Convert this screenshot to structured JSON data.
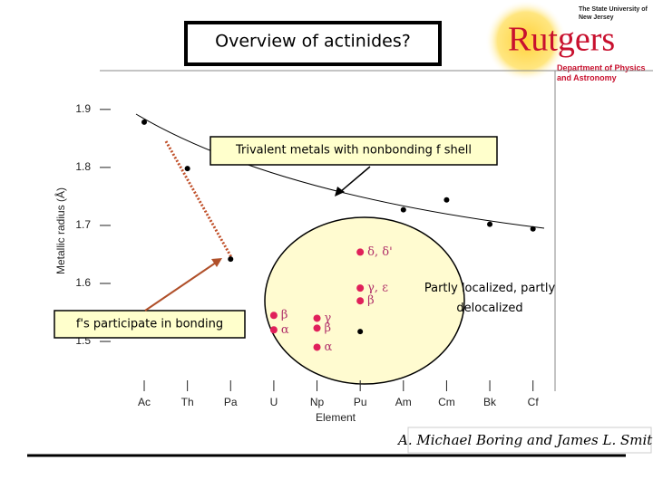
{
  "slide": {
    "title": "Overview of actinides?",
    "logo": {
      "name": "Rutgers",
      "university": "The State University of New Jersey",
      "department": "Department of Physics and Astronomy"
    },
    "citation": "A. Michael Boring and James L. Smith"
  },
  "chart_data": {
    "type": "scatter",
    "ylabel": "Metallic radius (Å)",
    "xlabel": "Element",
    "categories": [
      "Ac",
      "Th",
      "Pa",
      "U",
      "Np",
      "Pu",
      "Am",
      "Cm",
      "Bk",
      "Cf"
    ],
    "series": [
      {
        "name": "Trivalent",
        "color": "#000000",
        "values": [
          1.878,
          1.798,
          1.642,
          null,
          null,
          1.517,
          1.727,
          1.744,
          1.702,
          1.694
        ]
      }
    ],
    "phases": [
      {
        "element": "U",
        "label": "β",
        "value": 1.545,
        "color": "#e0205a"
      },
      {
        "element": "U",
        "label": "α",
        "value": 1.52,
        "color": "#e0205a"
      },
      {
        "element": "Np",
        "label": "γ",
        "value": 1.54,
        "color": "#e0205a"
      },
      {
        "element": "Np",
        "label": "β",
        "value": 1.523,
        "color": "#e0205a"
      },
      {
        "element": "Np",
        "label": "α",
        "value": 1.49,
        "color": "#e0205a"
      },
      {
        "element": "Pu",
        "label": "δ, δ'",
        "value": 1.654,
        "color": "#e0205a"
      },
      {
        "element": "Pu",
        "label": "γ, ε",
        "value": 1.592,
        "color": "#e0205a"
      },
      {
        "element": "Pu",
        "label": "β",
        "value": 1.57,
        "color": "#e0205a"
      }
    ],
    "ylim": [
      1.44,
      1.94
    ],
    "yticks": [
      1.5,
      1.6,
      1.7,
      1.8,
      1.9
    ],
    "annotations": [
      "Trivalent metals with nonbonding f shell",
      "Partly localized, partly delocalized",
      "f's participate in bonding"
    ]
  }
}
